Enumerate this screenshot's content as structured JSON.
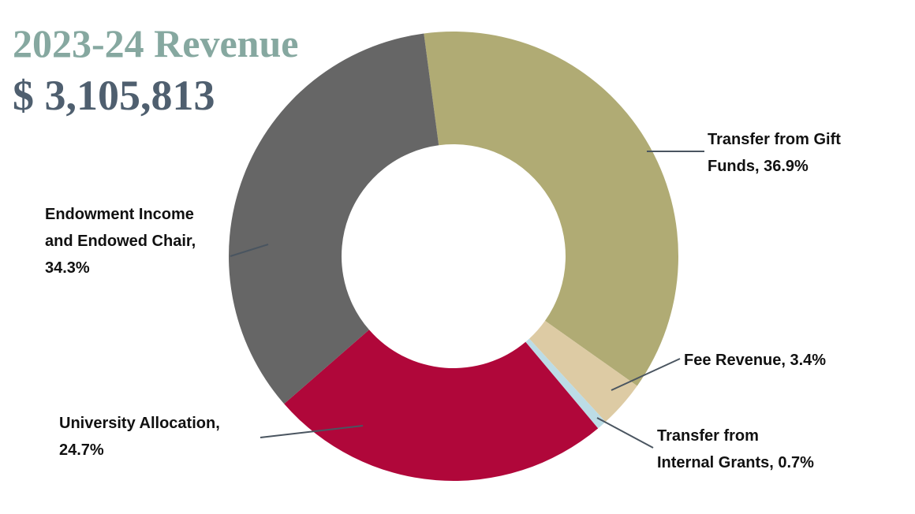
{
  "chart_data": {
    "type": "donut",
    "title": "2023-24 Revenue",
    "subtitle": "$ 3,105,813",
    "values": [
      36.9,
      3.4,
      0.7,
      24.7,
      34.3
    ],
    "value_labels": [
      "Transfer from Gift\nFunds, 36.9%",
      "Fee Revenue, 3.4%",
      "Transfer from\nInternal Grants, 0.7%",
      "University Allocation,\n24.7%",
      "Endowment Income\nand Endowed Chair,\n34.3%"
    ],
    "colors": [
      "#b0ab74",
      "#ddcba4",
      "#bcdce6",
      "#b0073a",
      "#666666"
    ]
  }
}
